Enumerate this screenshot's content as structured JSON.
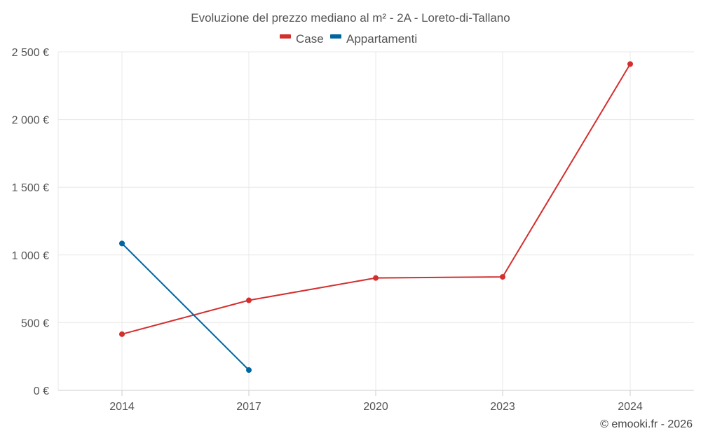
{
  "chart_data": {
    "type": "line",
    "title": "Evoluzione del prezzo mediano al m² - 2A - Loreto-di-Tallano",
    "categories": [
      "2014",
      "2017",
      "2020",
      "2023",
      "2024"
    ],
    "y_tick_labels": [
      "0 €",
      "500 €",
      "1 000 €",
      "1 500 €",
      "2 000 €",
      "2 500 €"
    ],
    "y_ticks": [
      0,
      500,
      1000,
      1500,
      2000,
      2500
    ],
    "ylim": [
      0,
      2500
    ],
    "grid": true,
    "legend_position": "top-center",
    "series": [
      {
        "name": "Case",
        "color": "#d32f2f",
        "values": [
          415,
          665,
          830,
          838,
          2410
        ]
      },
      {
        "name": "Appartamenti",
        "color": "#0066a1",
        "values": [
          1085,
          150,
          null,
          null,
          null
        ]
      }
    ]
  },
  "credit": "© emooki.fr - 2026"
}
